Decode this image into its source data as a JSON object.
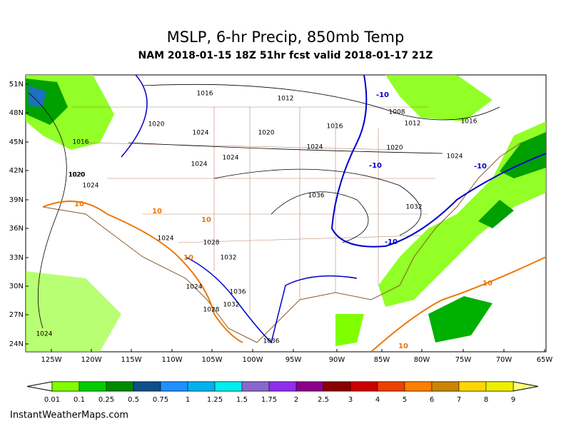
{
  "header": {
    "title": "MSLP, 6-hr Precip, 850mb Temp",
    "subtitle": "NAM 2018-01-15 18Z 51hr fcst valid 2018-01-17 21Z"
  },
  "map": {
    "lat_labels": [
      "51N",
      "48N",
      "45N",
      "42N",
      "39N",
      "36N",
      "33N",
      "30N",
      "27N",
      "24N"
    ],
    "lon_labels": [
      "125W",
      "120W",
      "115W",
      "110W",
      "105W",
      "100W",
      "95W",
      "90W",
      "85W",
      "80W",
      "75W",
      "70W",
      "65W"
    ],
    "isobar_labels": [
      "1016",
      "1012",
      "1008",
      "1012",
      "1016",
      "1016",
      "1020",
      "1024",
      "1020",
      "1024",
      "1020",
      "1016",
      "1020",
      "1024",
      "1024",
      "1024",
      "1036",
      "1032",
      "1028",
      "1032",
      "1024",
      "1036",
      "1032",
      "1024",
      "1028",
      "1036",
      "1020",
      "1024",
      "1024"
    ],
    "temp_labels": [
      "-10",
      "-10",
      "-10",
      "-10",
      "10",
      "10",
      "10",
      "10",
      "10",
      "10"
    ]
  },
  "colorbar": {
    "labels": [
      "0.01",
      "0.1",
      "0.25",
      "0.5",
      "0.75",
      "1",
      "1.25",
      "1.5",
      "1.75",
      "2",
      "2.5",
      "3",
      "4",
      "5",
      "6",
      "7",
      "8",
      "9"
    ]
  },
  "footer": "InstantWeatherMaps.com"
}
